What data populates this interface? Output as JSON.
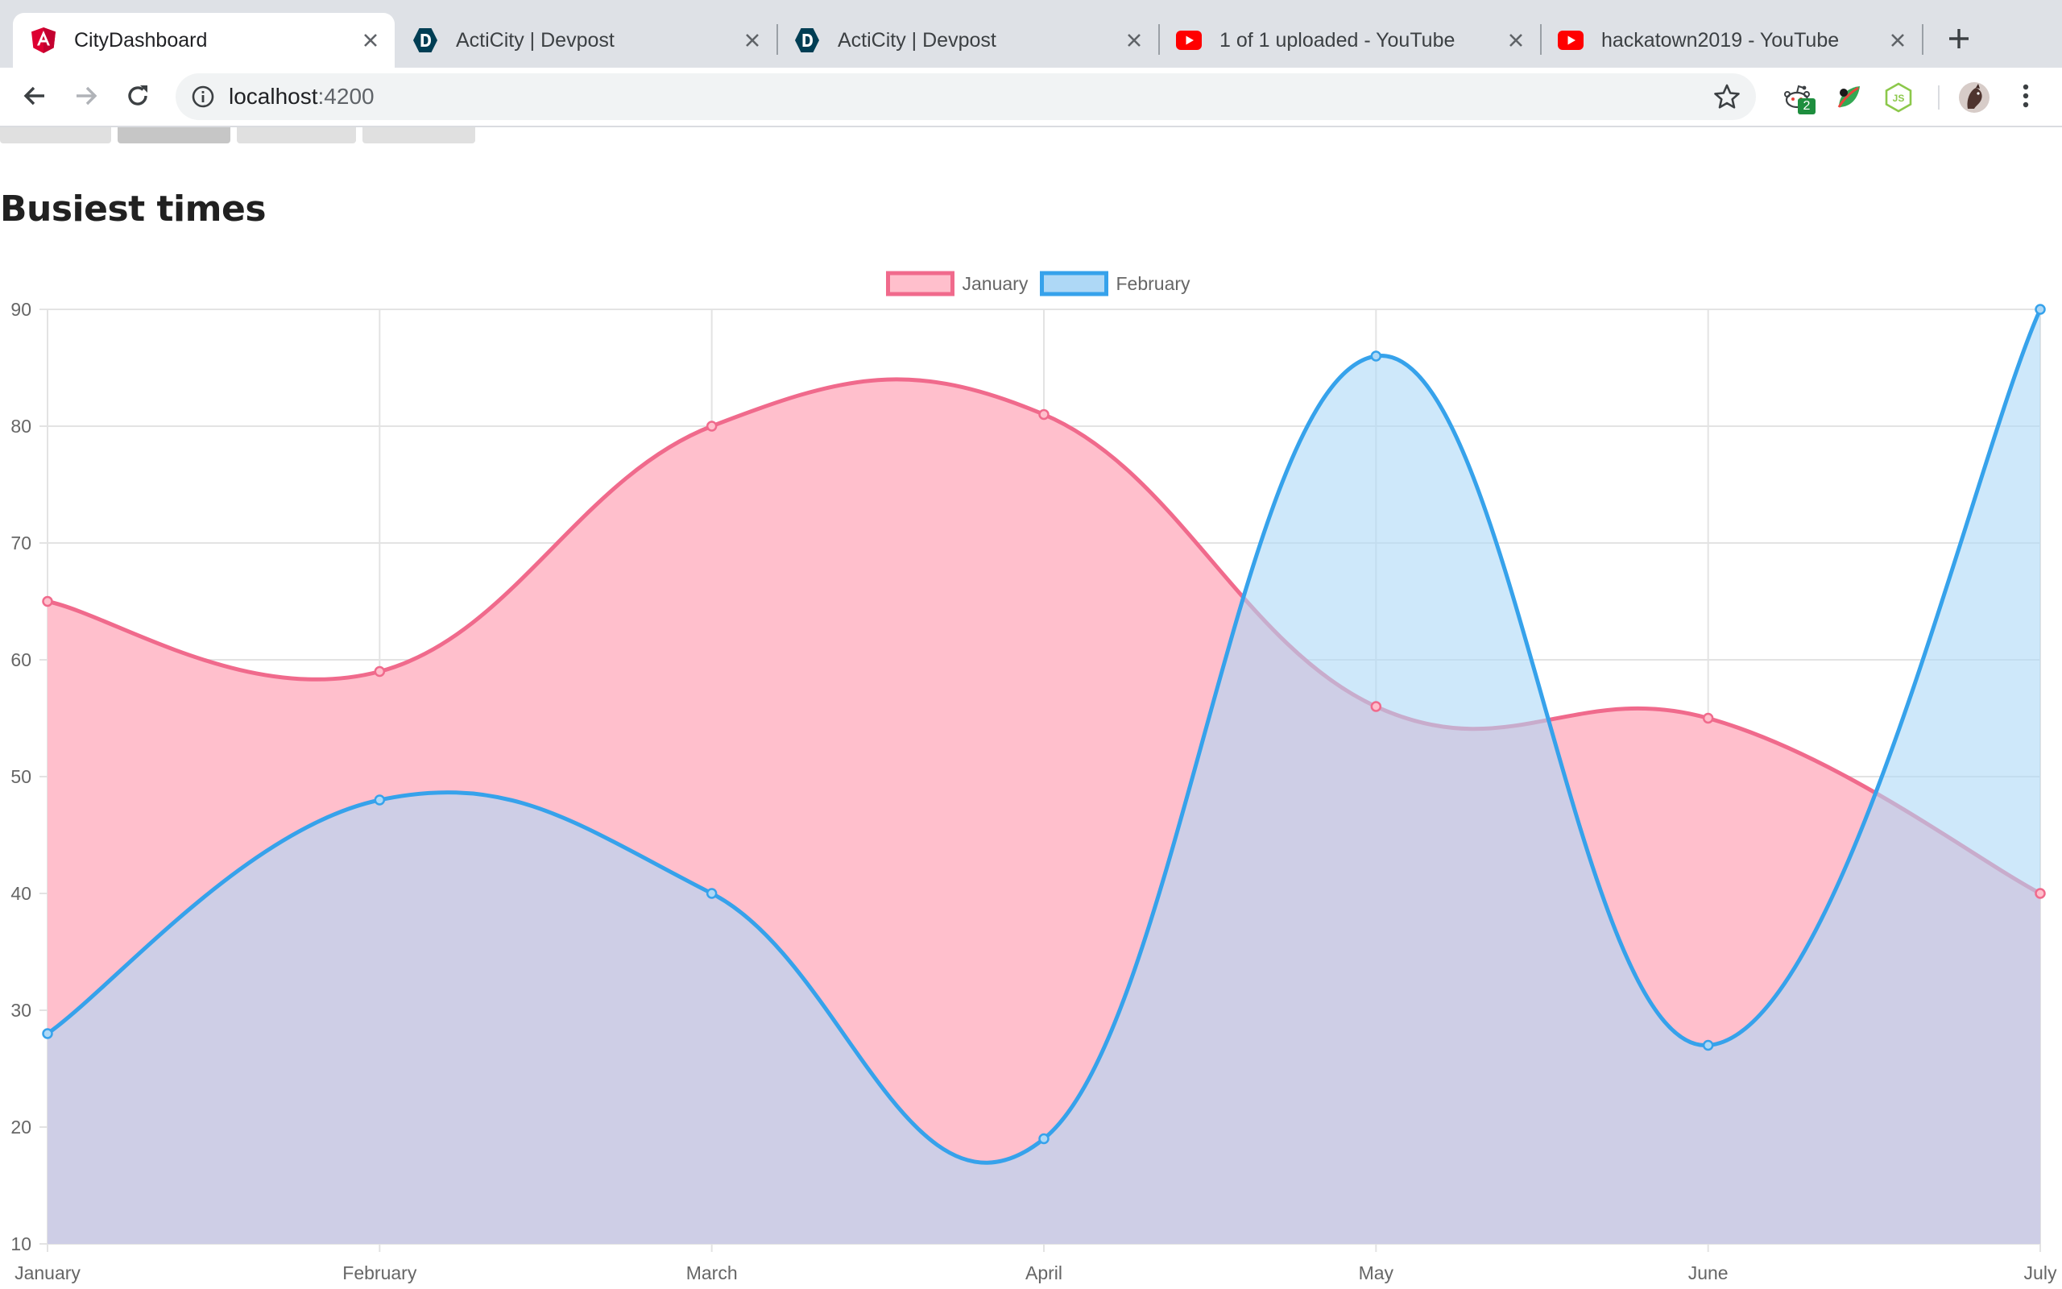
{
  "browser": {
    "tabs": [
      {
        "title": "CityDashboard",
        "icon": "angular-icon",
        "active": true
      },
      {
        "title": "ActiCity | Devpost",
        "icon": "devpost-icon",
        "active": false
      },
      {
        "title": "ActiCity | Devpost",
        "icon": "devpost-icon",
        "active": false
      },
      {
        "title": "1 of 1 uploaded - YouTube",
        "icon": "youtube-icon",
        "active": false
      },
      {
        "title": "hackatown2019 - YouTube",
        "icon": "youtube-icon",
        "active": false
      }
    ],
    "address": {
      "host": "localhost",
      "port": ":4200"
    },
    "extensions": [
      {
        "name": "reddit-extension-icon",
        "badge": "2"
      },
      {
        "name": "leaf-extension-icon"
      },
      {
        "name": "nodejs-extension-icon"
      }
    ]
  },
  "page": {
    "title": "Busiest times"
  },
  "colors": {
    "january_line": "#f06a8c",
    "january_fill": "#ffbfcc",
    "february_line": "#36a2eb",
    "february_fill": "#aed8f6"
  },
  "chart_data": {
    "type": "area",
    "x": [
      "January",
      "February",
      "March",
      "April",
      "May",
      "June",
      "July"
    ],
    "series": [
      {
        "name": "January",
        "values": [
          65,
          59,
          80,
          81,
          56,
          55,
          40
        ]
      },
      {
        "name": "February",
        "values": [
          28,
          48,
          40,
          19,
          86,
          27,
          90
        ]
      }
    ],
    "ylim": [
      10,
      90
    ],
    "yticks": [
      10,
      20,
      30,
      40,
      50,
      60,
      70,
      80,
      90
    ],
    "grid": true,
    "legend": "top-center"
  }
}
